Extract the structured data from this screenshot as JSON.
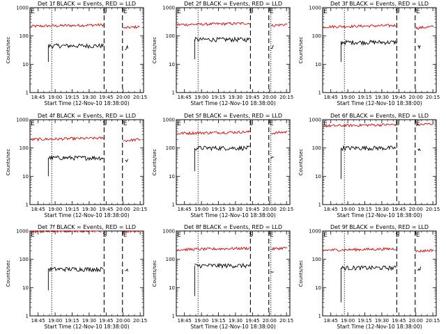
{
  "chart_data": [
    {
      "type": "line",
      "title": "Det 1f BLACK = Events, RED = LLD",
      "xlabel": "Start Time (12-Nov-10 18:38:00)",
      "ylabel": "Counts/sec",
      "yscale": "log",
      "ylim": [
        1,
        1000
      ],
      "yticks": [
        "1",
        "10",
        "100",
        "1000"
      ],
      "xlim": [
        18.63,
        20.3
      ],
      "xticks": [
        "18:45",
        "19:00",
        "19:15",
        "19:30",
        "19:45",
        "20:00",
        "20:15"
      ],
      "vlines": {
        "dotted": [
          18.95
        ],
        "dashed": [
          19.72,
          19.99
        ]
      },
      "markers": {
        "start": "S",
        "end": "E"
      },
      "series": [
        {
          "name": "LLD",
          "color": "#e00000",
          "segments": [
            {
              "x": [
                18.64,
                19.71
              ],
              "base": 220
            },
            {
              "x": [
                20.0,
                20.24
              ],
              "base": 190
            }
          ]
        },
        {
          "name": "Events",
          "color": "#000000",
          "segments": [
            {
              "x": [
                18.9,
                19.71
              ],
              "base": 45,
              "dip": 12
            },
            {
              "x": [
                20.03,
                20.07
              ],
              "base": 35
            }
          ]
        }
      ]
    },
    {
      "type": "line",
      "title": "Det 2f BLACK = Events, RED = LLD",
      "xlabel": "Start Time (12-Nov-10 18:38:00)",
      "ylabel": "Counts/sec",
      "yscale": "log",
      "ylim": [
        1,
        1000
      ],
      "yticks": [
        "1",
        "10",
        "100",
        "1000"
      ],
      "xlim": [
        18.63,
        20.3
      ],
      "xticks": [
        "18:45",
        "19:00",
        "19:15",
        "19:30",
        "19:45",
        "20:00",
        "20:15"
      ],
      "vlines": {
        "dotted": [
          18.95,
          20.02
        ],
        "dashed": [
          19.72,
          19.99
        ]
      },
      "markers": {
        "start": "S",
        "end": "E"
      },
      "series": [
        {
          "name": "LLD",
          "color": "#e00000",
          "segments": [
            {
              "x": [
                18.64,
                19.71
              ],
              "base": 250
            },
            {
              "x": [
                20.02,
                20.26
              ],
              "base": 230
            }
          ]
        },
        {
          "name": "Events",
          "color": "#000000",
          "segments": [
            {
              "x": [
                18.9,
                19.71
              ],
              "base": 75,
              "dip": 15
            },
            {
              "x": [
                20.02,
                20.06
              ],
              "base": 40
            }
          ]
        }
      ]
    },
    {
      "type": "line",
      "title": "Det 3f BLACK = Events, RED = LLD",
      "xlabel": "Start Time (12-Nov-10 18:38:00)",
      "ylabel": "Counts/sec",
      "yscale": "log",
      "ylim": [
        1,
        1000
      ],
      "yticks": [
        "1",
        "10",
        "100",
        "1000"
      ],
      "xlim": [
        18.63,
        20.3
      ],
      "xticks": [
        "18:45",
        "19:00",
        "19:15",
        "19:30",
        "19:45",
        "20:00",
        "20:15"
      ],
      "vlines": {
        "dotted": [
          18.95
        ],
        "dashed": [
          19.72,
          19.99
        ]
      },
      "markers": {
        "start": "S",
        "end": "E"
      },
      "series": [
        {
          "name": "LLD",
          "color": "#e00000",
          "segments": [
            {
              "x": [
                18.64,
                19.71
              ],
              "base": 210
            },
            {
              "x": [
                20.0,
                20.26
              ],
              "base": 190
            }
          ]
        },
        {
          "name": "Events",
          "color": "#000000",
          "segments": [
            {
              "x": [
                18.9,
                19.71
              ],
              "base": 60,
              "dip": 12
            },
            {
              "x": [
                20.03,
                20.07
              ],
              "base": 40
            }
          ]
        }
      ]
    },
    {
      "type": "line",
      "title": "Det 4f BLACK = Events, RED = LLD",
      "xlabel": "Start Time (12-Nov-10 18:38:00)",
      "ylabel": "Counts/sec",
      "yscale": "log",
      "ylim": [
        1,
        1000
      ],
      "yticks": [
        "1",
        "10",
        "100",
        "1000"
      ],
      "xlim": [
        18.63,
        20.3
      ],
      "xticks": [
        "18:45",
        "19:00",
        "19:15",
        "19:30",
        "19:45",
        "20:00",
        "20:15"
      ],
      "vlines": {
        "dotted": [
          18.95
        ],
        "dashed": [
          19.72,
          19.99
        ]
      },
      "markers": {
        "start": "S",
        "end": "E"
      },
      "series": [
        {
          "name": "LLD",
          "color": "#e00000",
          "segments": [
            {
              "x": [
                18.64,
                19.71
              ],
              "base": 200
            },
            {
              "x": [
                20.0,
                20.26
              ],
              "base": 180
            }
          ]
        },
        {
          "name": "Events",
          "color": "#000000",
          "segments": [
            {
              "x": [
                18.9,
                19.71
              ],
              "base": 45,
              "dip": 10
            },
            {
              "x": [
                20.03,
                20.07
              ],
              "base": 35
            }
          ]
        }
      ]
    },
    {
      "type": "line",
      "title": "Det 5f BLACK = Events, RED = LLD",
      "xlabel": "Start Time (12-Nov-10 18:38:00)",
      "ylabel": "Counts/sec",
      "yscale": "log",
      "ylim": [
        1,
        1000
      ],
      "yticks": [
        "1",
        "10",
        "100",
        "1000"
      ],
      "xlim": [
        18.63,
        20.3
      ],
      "xticks": [
        "18:45",
        "19:00",
        "19:15",
        "19:30",
        "19:45",
        "20:00",
        "20:15"
      ],
      "vlines": {
        "dotted": [
          18.95,
          20.02
        ],
        "dashed": [
          19.72,
          19.99
        ]
      },
      "markers": {
        "start": "S",
        "end": "E"
      },
      "series": [
        {
          "name": "LLD",
          "color": "#e00000",
          "segments": [
            {
              "x": [
                18.64,
                19.71
              ],
              "base": 330
            },
            {
              "x": [
                20.02,
                20.26
              ],
              "base": 330
            }
          ]
        },
        {
          "name": "Events",
          "color": "#000000",
          "segments": [
            {
              "x": [
                18.9,
                19.71
              ],
              "base": 100,
              "dip": 15
            },
            {
              "x": [
                20.02,
                20.06
              ],
              "base": 40
            }
          ]
        }
      ]
    },
    {
      "type": "line",
      "title": "Det 6f BLACK = Events, RED = LLD",
      "xlabel": "Start Time (12-Nov-10 18:38:00)",
      "ylabel": "Counts/sec",
      "yscale": "log",
      "ylim": [
        1,
        1000
      ],
      "yticks": [
        "1",
        "10",
        "100",
        "1000"
      ],
      "xlim": [
        18.63,
        20.3
      ],
      "xticks": [
        "18:45",
        "19:00",
        "19:15",
        "19:30",
        "19:45",
        "20:00",
        "20:15"
      ],
      "vlines": {
        "dotted": [
          18.95
        ],
        "dashed": [
          19.72,
          19.99
        ]
      },
      "markers": {
        "start": "S",
        "end": "E"
      },
      "series": [
        {
          "name": "LLD",
          "color": "#e00000",
          "segments": [
            {
              "x": [
                18.64,
                19.71
              ],
              "base": 600
            },
            {
              "x": [
                20.0,
                20.26
              ],
              "base": 650
            }
          ]
        },
        {
          "name": "Events",
          "color": "#000000",
          "segments": [
            {
              "x": [
                18.9,
                19.71
              ],
              "base": 100,
              "dip": 8
            },
            {
              "x": [
                20.03,
                20.07
              ],
              "base": 80
            }
          ]
        }
      ]
    },
    {
      "type": "line",
      "title": "Det 7f BLACK = Events, RED = LLD",
      "xlabel": "Start Time (12-Nov-10 18:38:00)",
      "ylabel": "Counts/sec",
      "yscale": "log",
      "ylim": [
        1,
        1000
      ],
      "yticks": [
        "1",
        "10",
        "100",
        "1000"
      ],
      "xlim": [
        18.63,
        20.3
      ],
      "xticks": [
        "18:45",
        "19:00",
        "19:15",
        "19:30",
        "19:45",
        "20:00",
        "20:15"
      ],
      "vlines": {
        "dotted": [
          18.95
        ],
        "dashed": [
          19.72,
          19.99
        ]
      },
      "markers": {
        "start": "S",
        "end": "E"
      },
      "series": [
        {
          "name": "LLD",
          "color": "#e00000",
          "segments": [
            {
              "x": [
                18.64,
                19.71
              ],
              "base": 950
            },
            {
              "x": [
                20.0,
                20.26
              ],
              "base": 950
            }
          ]
        },
        {
          "name": "Events",
          "color": "#000000",
          "segments": [
            {
              "x": [
                18.9,
                19.71
              ],
              "base": 45,
              "dip": 8
            },
            {
              "x": [
                20.03,
                20.07
              ],
              "base": 40
            }
          ]
        }
      ]
    },
    {
      "type": "line",
      "title": "Det 8f BLACK = Events, RED = LLD",
      "xlabel": "Start Time (12-Nov-10 18:38:00)",
      "ylabel": "Counts/sec",
      "yscale": "log",
      "ylim": [
        1,
        1000
      ],
      "yticks": [
        "1",
        "10",
        "100",
        "1000"
      ],
      "xlim": [
        18.63,
        20.3
      ],
      "xticks": [
        "18:45",
        "19:00",
        "19:15",
        "19:30",
        "19:45",
        "20:00",
        "20:15"
      ],
      "vlines": {
        "dotted": [
          18.95,
          20.02
        ],
        "dashed": [
          19.72,
          19.99
        ]
      },
      "markers": {
        "start": "S",
        "end": "E"
      },
      "series": [
        {
          "name": "LLD",
          "color": "#e00000",
          "segments": [
            {
              "x": [
                18.64,
                19.71
              ],
              "base": 220
            },
            {
              "x": [
                20.02,
                20.26
              ],
              "base": 230
            }
          ]
        },
        {
          "name": "Events",
          "color": "#000000",
          "segments": [
            {
              "x": [
                18.9,
                19.71
              ],
              "base": 60,
              "dip": 5
            },
            {
              "x": [
                20.02,
                20.06
              ],
              "base": 30
            }
          ]
        }
      ]
    },
    {
      "type": "line",
      "title": "Det 9f BLACK = Events, RED = LLD",
      "xlabel": "Start Time (12-Nov-10 18:38:00)",
      "ylabel": "Counts/sec",
      "yscale": "log",
      "ylim": [
        1,
        1000
      ],
      "yticks": [
        "1",
        "10",
        "100",
        "1000"
      ],
      "xlim": [
        18.63,
        20.3
      ],
      "xticks": [
        "18:45",
        "19:00",
        "19:15",
        "19:30",
        "19:45",
        "20:00",
        "20:15"
      ],
      "vlines": {
        "dotted": [
          18.95
        ],
        "dashed": [
          19.72,
          19.99
        ]
      },
      "markers": {
        "start": "S",
        "end": "E"
      },
      "series": [
        {
          "name": "LLD",
          "color": "#e00000",
          "segments": [
            {
              "x": [
                18.64,
                19.71
              ],
              "base": 210
            },
            {
              "x": [
                20.0,
                20.26
              ],
              "base": 190
            }
          ]
        },
        {
          "name": "Events",
          "color": "#000000",
          "segments": [
            {
              "x": [
                18.9,
                19.71
              ],
              "base": 50,
              "dip": 3
            },
            {
              "x": [
                20.03,
                20.07
              ],
              "base": 45
            }
          ]
        }
      ]
    }
  ]
}
